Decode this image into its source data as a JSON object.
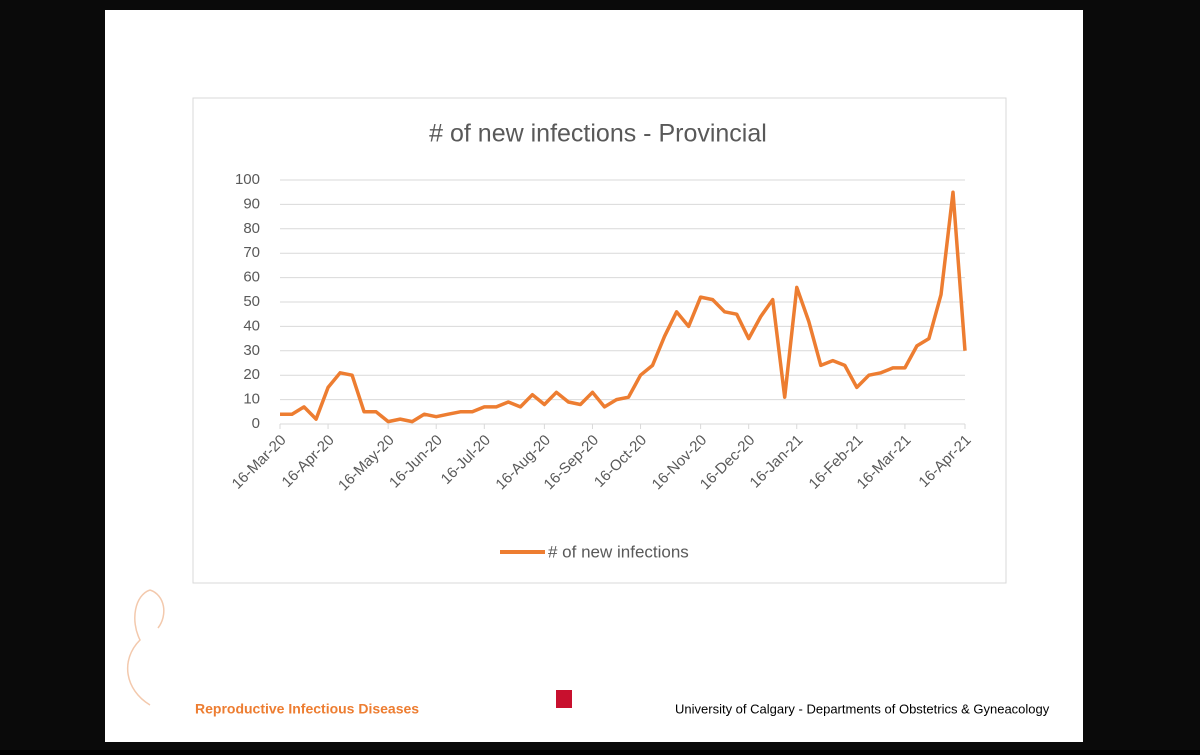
{
  "chart_data": {
    "type": "line",
    "title": "# of new infections - Provincial",
    "categories": [
      "16-Mar-20",
      null,
      null,
      null,
      "16-Apr-20",
      null,
      null,
      null,
      null,
      "16-May-20",
      null,
      null,
      null,
      "16-Jun-20",
      null,
      null,
      null,
      "16-Jul-20",
      null,
      null,
      null,
      null,
      "16-Aug-20",
      null,
      null,
      null,
      "16-Sep-20",
      null,
      null,
      null,
      "16-Oct-20",
      null,
      null,
      null,
      null,
      "16-Nov-20",
      null,
      null,
      null,
      "16-Dec-20",
      null,
      null,
      null,
      "16-Jan-21",
      null,
      null,
      null,
      null,
      "16-Feb-21",
      null,
      null,
      null,
      "16-Mar-21",
      null,
      null,
      null,
      null,
      "16-Apr-21"
    ],
    "series": [
      {
        "name": "# of new infections",
        "color": "#ed7d31",
        "values": [
          4,
          4,
          7,
          2,
          15,
          21,
          20,
          5,
          5,
          1,
          2,
          1,
          4,
          3,
          4,
          5,
          5,
          7,
          7,
          9,
          7,
          12,
          8,
          13,
          9,
          8,
          13,
          7,
          10,
          11,
          20,
          24,
          36,
          46,
          40,
          52,
          51,
          46,
          45,
          35,
          44,
          51,
          11,
          56,
          42,
          24,
          26,
          24,
          15,
          20,
          21,
          23,
          23,
          32,
          35,
          53,
          95,
          30
        ]
      }
    ],
    "ylim": [
      0,
      100
    ],
    "yticks": [
      0,
      10,
      20,
      30,
      40,
      50,
      60,
      70,
      80,
      90,
      100
    ],
    "grid": true,
    "legend": "bottom"
  },
  "footer": {
    "left": "Reproductive Infectious Diseases",
    "right": "University of Calgary - Departments of Obstetrics & Gyneacology"
  }
}
